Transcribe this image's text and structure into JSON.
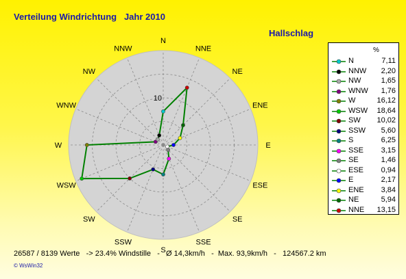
{
  "title": "Verteilung Windrichtung   Jahr 2010",
  "station": "Hallschlag",
  "stats": "26587 / 8139 Werte   -> 23.4% Windstille   -   Ø 14,3km/h   -  Max. 93,9km/h   -   124567.2 km",
  "software": "© WsWin32",
  "chart_data": {
    "type": "radar",
    "title": "Verteilung Windrichtung   Jahr 2010",
    "directions": [
      "N",
      "NNE",
      "NE",
      "ENE",
      "E",
      "ESE",
      "SE",
      "SSE",
      "S",
      "SSW",
      "SW",
      "WSW",
      "W",
      "WNW",
      "NW",
      "NNW"
    ],
    "values": [
      7.11,
      13.15,
      5.94,
      3.84,
      2.17,
      0.94,
      1.46,
      3.15,
      6.25,
      5.6,
      10.02,
      18.64,
      16.12,
      1.76,
      1.65,
      2.2
    ],
    "radial_label": "10",
    "radial_max": 20,
    "rings": [
      5,
      10,
      15,
      20
    ],
    "unit": "%",
    "line_color": "#008000",
    "grid": true,
    "legend_position": "right",
    "legend": [
      {
        "name": "N",
        "value": "7,11",
        "color": "#00cccc"
      },
      {
        "name": "NNW",
        "value": "2,20",
        "color": "#000000"
      },
      {
        "name": "NW",
        "value": "1,65",
        "color": "#aaaaaa"
      },
      {
        "name": "WNW",
        "value": "1,76",
        "color": "#800080"
      },
      {
        "name": "W",
        "value": "16,12",
        "color": "#808000"
      },
      {
        "name": "WSW",
        "value": "18,64",
        "color": "#00cc00"
      },
      {
        "name": "SW",
        "value": "10,02",
        "color": "#800000"
      },
      {
        "name": "SSW",
        "value": "5,60",
        "color": "#000080"
      },
      {
        "name": "S",
        "value": "6,25",
        "color": "#008080"
      },
      {
        "name": "SSE",
        "value": "3,15",
        "color": "#ff00ff"
      },
      {
        "name": "SE",
        "value": "1,46",
        "color": "#808080"
      },
      {
        "name": "ESE",
        "value": "0,94",
        "color": "#ffffff"
      },
      {
        "name": "E",
        "value": "2,17",
        "color": "#0000ff"
      },
      {
        "name": "ENE",
        "value": "3,84",
        "color": "#ffff00"
      },
      {
        "name": "NE",
        "value": "5,94",
        "color": "#006600"
      },
      {
        "name": "NNE",
        "value": "13,15",
        "color": "#cc0000"
      }
    ]
  }
}
